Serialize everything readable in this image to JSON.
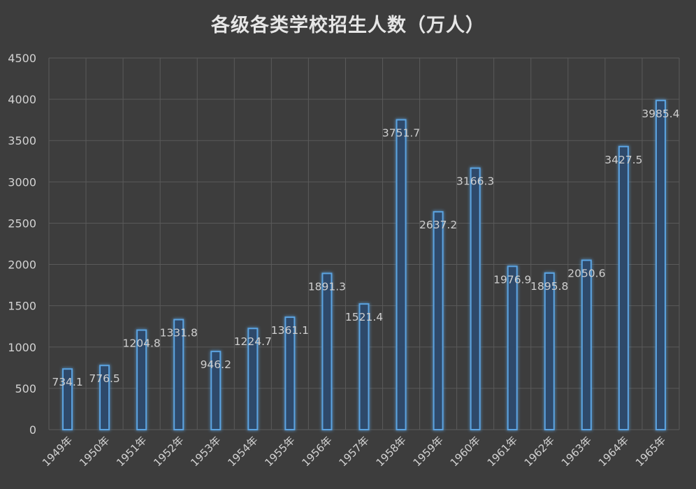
{
  "chart_data": {
    "type": "bar",
    "title": "各级各类学校招生人数（万人）",
    "categories": [
      "1949年",
      "1950年",
      "1951年",
      "1952年",
      "1953年",
      "1954年",
      "1955年",
      "1956年",
      "1957年",
      "1958年",
      "1959年",
      "1960年",
      "1961年",
      "1962年",
      "1963年",
      "1964年",
      "1965年"
    ],
    "values": [
      734.1,
      776.5,
      1204.8,
      1331.8,
      946.2,
      1224.7,
      1361.1,
      1891.3,
      1521.4,
      3751.7,
      2637.2,
      3166.3,
      1976.9,
      1895.8,
      2050.6,
      3427.5,
      3985.4
    ],
    "data_labels": [
      "734.1",
      "776.5",
      "1204.8",
      "1331.8",
      "946.2",
      "1224.7",
      "1361.1",
      "1891.3",
      "1521.4",
      "3751.7",
      "2637.2",
      "3166.3",
      "1976.9",
      "1895.8",
      "2050.6",
      "3427.5",
      "3985.4"
    ],
    "y_ticks": [
      0,
      500,
      1000,
      1500,
      2000,
      2500,
      3000,
      3500,
      4000,
      4500
    ],
    "ylim": [
      0,
      4500
    ],
    "xlabel": "",
    "ylabel": "",
    "grid": true,
    "legend": "none",
    "colors": {
      "background": "#3d3d3d",
      "grid": "#5a5a5a",
      "bar_fill": "#2d4a6a",
      "bar_stroke": "#5ba3e0",
      "text": "#d2d2d2"
    }
  }
}
